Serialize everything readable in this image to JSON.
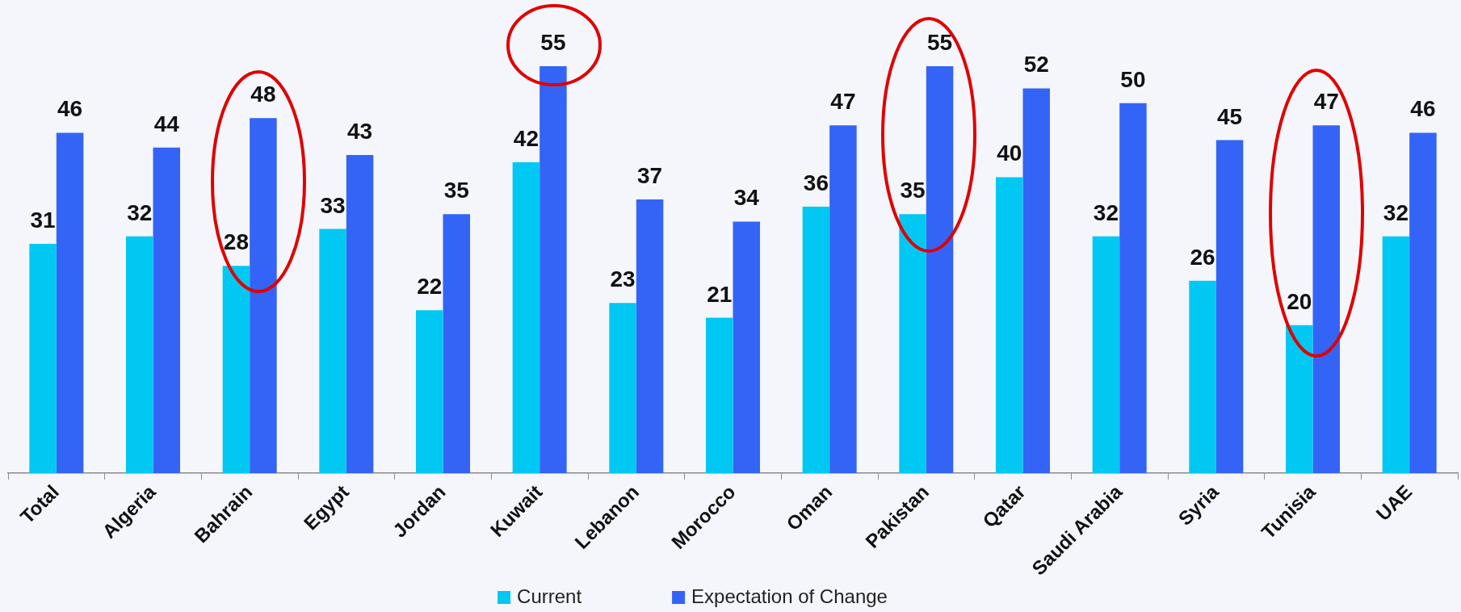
{
  "chart_data": {
    "type": "bar",
    "categories": [
      "Total",
      "Algeria",
      "Bahrain",
      "Egypt",
      "Jordan",
      "Kuwait",
      "Lebanon",
      "Morocco",
      "Oman",
      "Pakistan",
      "Qatar",
      "Saudi Arabia",
      "Syria",
      "Tunisia",
      "UAE"
    ],
    "series": [
      {
        "name": "Current",
        "color": "#00c8f2",
        "values": [
          31,
          32,
          28,
          33,
          22,
          42,
          23,
          21,
          36,
          35,
          40,
          32,
          26,
          20,
          32
        ]
      },
      {
        "name": "Expectation of Change",
        "color": "#3464f6",
        "values": [
          46,
          44,
          48,
          43,
          35,
          55,
          37,
          34,
          47,
          55,
          52,
          50,
          45,
          47,
          46
        ]
      }
    ],
    "data_labels": true,
    "legend": "bottom"
  }
}
